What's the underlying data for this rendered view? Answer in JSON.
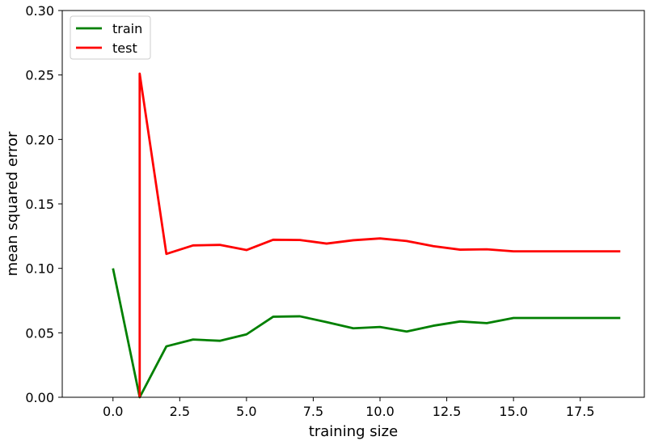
{
  "chart_data": {
    "type": "line",
    "xlabel": "training size",
    "ylabel": "mean squared error",
    "xlim": [
      -1.9,
      19.9
    ],
    "ylim": [
      0,
      0.3
    ],
    "x_ticks": [
      0.0,
      2.5,
      5.0,
      7.5,
      10.0,
      12.5,
      15.0,
      17.5
    ],
    "x_tick_labels": [
      "0.0",
      "2.5",
      "5.0",
      "7.5",
      "10.0",
      "12.5",
      "15.0",
      "17.5"
    ],
    "y_ticks": [
      0.0,
      0.05,
      0.1,
      0.15,
      0.2,
      0.25,
      0.3
    ],
    "y_tick_labels": [
      "0.00",
      "0.05",
      "0.10",
      "0.15",
      "0.20",
      "0.25",
      "0.30"
    ],
    "grid": false,
    "legend_position": "top-left",
    "series": [
      {
        "name": "train",
        "color": "#008000",
        "points": [
          [
            0,
            0.1
          ],
          [
            1,
            0.0
          ],
          [
            2,
            0.0395
          ],
          [
            3,
            0.0448
          ],
          [
            4,
            0.0438
          ],
          [
            5,
            0.0488
          ],
          [
            6,
            0.0625
          ],
          [
            7,
            0.0628
          ],
          [
            8,
            0.0583
          ],
          [
            9,
            0.0535
          ],
          [
            10,
            0.0545
          ],
          [
            11,
            0.051
          ],
          [
            12,
            0.0555
          ],
          [
            13,
            0.0588
          ],
          [
            14,
            0.0575
          ],
          [
            15,
            0.0615
          ],
          [
            16,
            0.0615
          ],
          [
            17,
            0.0615
          ],
          [
            18,
            0.0615
          ],
          [
            19,
            0.0615
          ]
        ]
      },
      {
        "name": "test",
        "color": "#ff0000",
        "points": [
          [
            1,
            0.0
          ],
          [
            1,
            0.251
          ],
          [
            2,
            0.1112
          ],
          [
            3,
            0.1178
          ],
          [
            4,
            0.1182
          ],
          [
            5,
            0.1142
          ],
          [
            6,
            0.1222
          ],
          [
            7,
            0.122
          ],
          [
            8,
            0.1192
          ],
          [
            9,
            0.1218
          ],
          [
            10,
            0.1232
          ],
          [
            11,
            0.1212
          ],
          [
            12,
            0.1172
          ],
          [
            13,
            0.1145
          ],
          [
            14,
            0.1148
          ],
          [
            15,
            0.1132
          ],
          [
            16,
            0.1132
          ],
          [
            17,
            0.1132
          ],
          [
            18,
            0.1132
          ],
          [
            19,
            0.1132
          ]
        ]
      }
    ]
  }
}
